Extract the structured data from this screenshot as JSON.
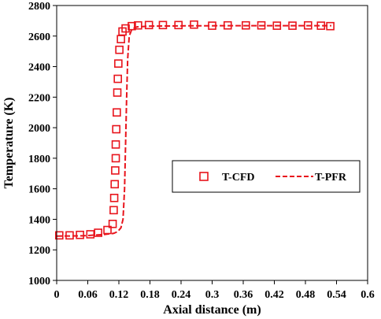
{
  "chart_data": {
    "type": "line",
    "xlabel": "Axial distance (m)",
    "ylabel": "Temperature (K)",
    "xlim": [
      0,
      0.6
    ],
    "ylim": [
      1000,
      2800
    ],
    "x_ticks": [
      "0",
      "0.06",
      "0.12",
      "0.18",
      "0.24",
      "0.3",
      "0.36",
      "0.42",
      "0.48",
      "0.54",
      "0.6"
    ],
    "y_ticks": [
      "1000",
      "1200",
      "1400",
      "1600",
      "1800",
      "2000",
      "2200",
      "2400",
      "2600",
      "2800"
    ],
    "grid": false,
    "legend_position": "center-right",
    "series": [
      {
        "name": "T-CFD",
        "style": "square-markers",
        "color": "#e8141c",
        "points": [
          [
            0.005,
            1295
          ],
          [
            0.025,
            1295
          ],
          [
            0.045,
            1298
          ],
          [
            0.065,
            1302
          ],
          [
            0.08,
            1312
          ],
          [
            0.098,
            1330
          ],
          [
            0.108,
            1370
          ],
          [
            0.11,
            1460
          ],
          [
            0.111,
            1540
          ],
          [
            0.112,
            1630
          ],
          [
            0.113,
            1720
          ],
          [
            0.114,
            1800
          ],
          [
            0.114,
            1890
          ],
          [
            0.115,
            1990
          ],
          [
            0.116,
            2100
          ],
          [
            0.117,
            2230
          ],
          [
            0.118,
            2320
          ],
          [
            0.119,
            2420
          ],
          [
            0.121,
            2510
          ],
          [
            0.124,
            2580
          ],
          [
            0.127,
            2630
          ],
          [
            0.133,
            2650
          ],
          [
            0.145,
            2665
          ],
          [
            0.157,
            2670
          ],
          [
            0.178,
            2672
          ],
          [
            0.205,
            2672
          ],
          [
            0.235,
            2672
          ],
          [
            0.265,
            2675
          ],
          [
            0.3,
            2668
          ],
          [
            0.33,
            2670
          ],
          [
            0.365,
            2670
          ],
          [
            0.395,
            2670
          ],
          [
            0.425,
            2668
          ],
          [
            0.455,
            2668
          ],
          [
            0.485,
            2670
          ],
          [
            0.51,
            2668
          ],
          [
            0.528,
            2665
          ]
        ]
      },
      {
        "name": "T-PFR",
        "style": "dashed-line",
        "color": "#e8141c",
        "points": [
          [
            0.0,
            1290
          ],
          [
            0.05,
            1292
          ],
          [
            0.09,
            1300
          ],
          [
            0.11,
            1308
          ],
          [
            0.118,
            1320
          ],
          [
            0.124,
            1345
          ],
          [
            0.128,
            1400
          ],
          [
            0.131,
            1600
          ],
          [
            0.133,
            1900
          ],
          [
            0.135,
            2200
          ],
          [
            0.137,
            2450
          ],
          [
            0.14,
            2600
          ],
          [
            0.145,
            2645
          ],
          [
            0.155,
            2660
          ],
          [
            0.18,
            2665
          ],
          [
            0.25,
            2667
          ],
          [
            0.35,
            2668
          ],
          [
            0.45,
            2668
          ],
          [
            0.53,
            2668
          ]
        ]
      }
    ]
  }
}
